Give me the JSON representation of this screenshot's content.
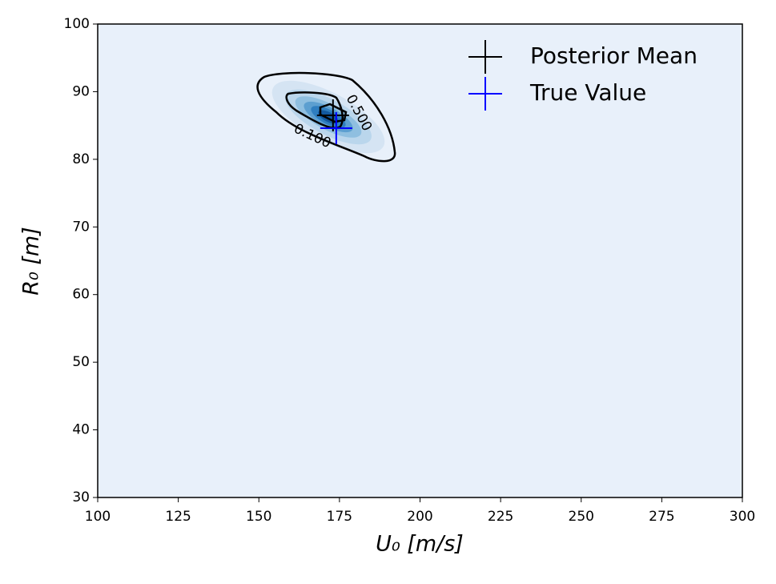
{
  "chart_data": {
    "type": "contour",
    "xlabel": "U₀ [m/s]",
    "ylabel": "R₀ [m]",
    "xlim": [
      100,
      300
    ],
    "ylim": [
      30,
      100
    ],
    "xticks": [
      100,
      125,
      150,
      175,
      200,
      225,
      250,
      275,
      300
    ],
    "yticks": [
      30,
      40,
      50,
      60,
      70,
      80,
      90,
      100
    ],
    "contour_labels": [
      {
        "value": 0.1,
        "label": "0.100"
      },
      {
        "value": 0.5,
        "label": "0.500"
      }
    ],
    "series": [
      {
        "name": "Posterior Mean",
        "color": "#000000",
        "x": [
          173
        ],
        "y": [
          86.5
        ]
      },
      {
        "name": "True Value",
        "color": "#0000ff",
        "x": [
          174
        ],
        "y": [
          84.6
        ]
      }
    ],
    "legend": "upper right"
  }
}
